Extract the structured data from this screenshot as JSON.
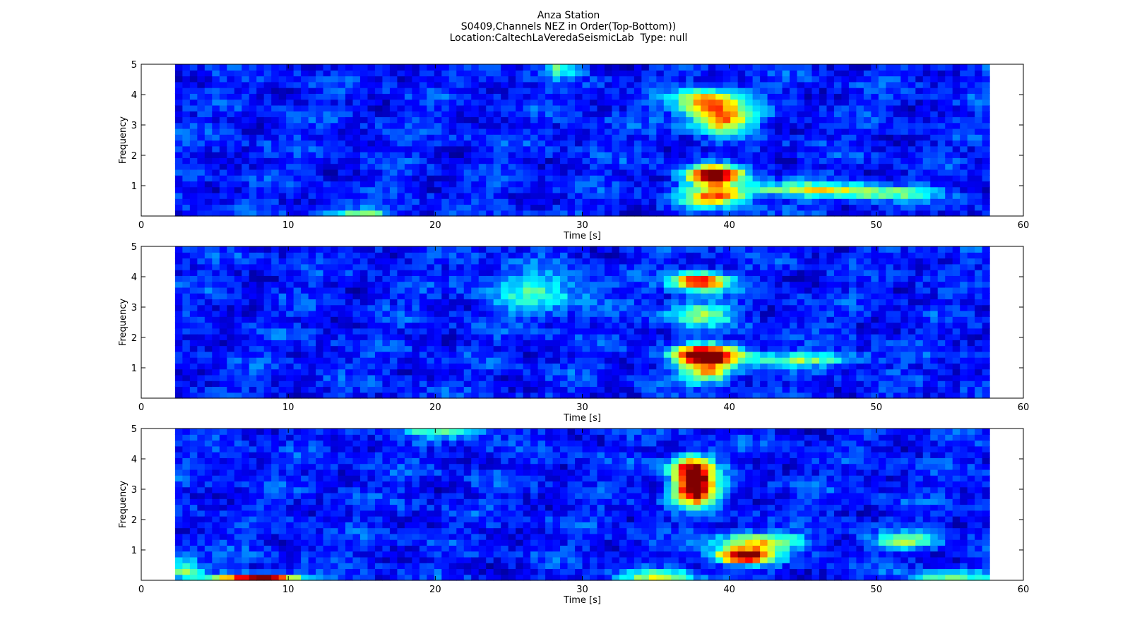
{
  "header": {
    "title": "Anza Station",
    "subtitle": "S0409,Channels NEZ in Order(Top-Bottom))",
    "location_line": "Location:CaltechLaVeredaSeismicLab  Type: null"
  },
  "chart_data": [
    {
      "type": "heatmap",
      "channel": "N",
      "xlabel": "Time [s]",
      "ylabel": "Frequency",
      "xlim": [
        0,
        60
      ],
      "ylim": [
        0,
        5
      ],
      "data_extent_x": [
        2.3,
        57.7
      ],
      "x_ticks": [
        0,
        10,
        20,
        30,
        40,
        50,
        60
      ],
      "y_ticks": [
        1,
        2,
        3,
        4,
        5
      ],
      "colormap": "jet",
      "hotspots": [
        {
          "t": 38.5,
          "f": 3.8,
          "intensity": 0.55,
          "st": 1.6,
          "sf": 0.3
        },
        {
          "t": 39.5,
          "f": 3.2,
          "intensity": 0.62,
          "st": 1.4,
          "sf": 0.3
        },
        {
          "t": 39.0,
          "f": 1.35,
          "intensity": 0.98,
          "st": 1.3,
          "sf": 0.22
        },
        {
          "t": 39.0,
          "f": 0.65,
          "intensity": 0.6,
          "st": 1.5,
          "sf": 0.22
        },
        {
          "t": 45.0,
          "f": 0.9,
          "intensity": 0.38,
          "st": 3.5,
          "sf": 0.15
        },
        {
          "t": 50.0,
          "f": 0.75,
          "intensity": 0.3,
          "st": 3.0,
          "sf": 0.15
        },
        {
          "t": 15.0,
          "f": 0.1,
          "intensity": 0.35,
          "st": 1.5,
          "sf": 0.12
        },
        {
          "t": 28.5,
          "f": 4.9,
          "intensity": 0.3,
          "st": 0.8,
          "sf": 0.2
        }
      ]
    },
    {
      "type": "heatmap",
      "channel": "E",
      "xlabel": "Time [s]",
      "ylabel": "Frequency",
      "xlim": [
        0,
        60
      ],
      "ylim": [
        0,
        5
      ],
      "data_extent_x": [
        2.3,
        57.7
      ],
      "x_ticks": [
        0,
        10,
        20,
        30,
        40,
        50,
        60
      ],
      "y_ticks": [
        1,
        2,
        3,
        4,
        5
      ],
      "colormap": "jet",
      "hotspots": [
        {
          "t": 38.0,
          "f": 3.85,
          "intensity": 0.78,
          "st": 1.3,
          "sf": 0.22
        },
        {
          "t": 38.5,
          "f": 1.45,
          "intensity": 0.98,
          "st": 1.5,
          "sf": 0.22
        },
        {
          "t": 38.5,
          "f": 0.9,
          "intensity": 0.55,
          "st": 1.3,
          "sf": 0.25
        },
        {
          "t": 38.0,
          "f": 2.8,
          "intensity": 0.35,
          "st": 1.5,
          "sf": 0.3
        },
        {
          "t": 45.0,
          "f": 1.3,
          "intensity": 0.35,
          "st": 3.0,
          "sf": 0.15
        },
        {
          "t": 27.0,
          "f": 3.5,
          "intensity": 0.25,
          "st": 2.5,
          "sf": 0.5
        }
      ]
    },
    {
      "type": "heatmap",
      "channel": "Z",
      "xlabel": "Time [s]",
      "ylabel": "Frequency",
      "xlim": [
        0,
        60
      ],
      "ylim": [
        0,
        5
      ],
      "data_extent_x": [
        2.3,
        57.7
      ],
      "x_ticks": [
        0,
        10,
        20,
        30,
        40,
        50,
        60
      ],
      "y_ticks": [
        1,
        2,
        3,
        4,
        5
      ],
      "colormap": "jet",
      "hotspots": [
        {
          "t": 37.5,
          "f": 3.7,
          "intensity": 0.78,
          "st": 1.0,
          "sf": 0.3
        },
        {
          "t": 37.7,
          "f": 3.0,
          "intensity": 0.95,
          "st": 1.0,
          "sf": 0.35
        },
        {
          "t": 41.0,
          "f": 0.8,
          "intensity": 0.95,
          "st": 1.4,
          "sf": 0.18
        },
        {
          "t": 42.0,
          "f": 1.3,
          "intensity": 0.5,
          "st": 2.0,
          "sf": 0.2
        },
        {
          "t": 8.0,
          "f": 0.08,
          "intensity": 0.9,
          "st": 2.0,
          "sf": 0.1
        },
        {
          "t": 35.0,
          "f": 0.15,
          "intensity": 0.4,
          "st": 2.0,
          "sf": 0.12
        },
        {
          "t": 52.0,
          "f": 1.3,
          "intensity": 0.35,
          "st": 1.5,
          "sf": 0.2
        },
        {
          "t": 21.0,
          "f": 4.95,
          "intensity": 0.35,
          "st": 2.0,
          "sf": 0.15
        },
        {
          "t": 3.0,
          "f": 0.4,
          "intensity": 0.4,
          "st": 0.8,
          "sf": 0.25
        },
        {
          "t": 55.0,
          "f": 0.15,
          "intensity": 0.35,
          "st": 2.0,
          "sf": 0.12
        }
      ]
    }
  ]
}
